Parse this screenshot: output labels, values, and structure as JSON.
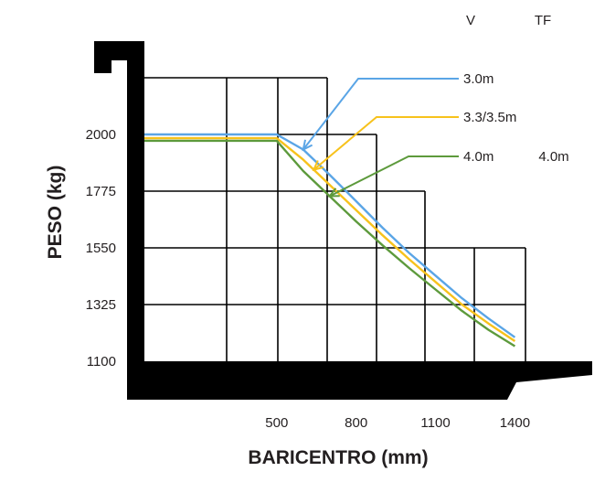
{
  "chart_data": {
    "type": "line",
    "title": "",
    "xlabel": "BARICENTRO (mm)",
    "ylabel": "PESO (kg)",
    "x_ticks": [
      500,
      800,
      1100,
      1400
    ],
    "y_ticks": [
      1100,
      1325,
      1550,
      1775,
      2000
    ],
    "xlim": [
      0,
      1440
    ],
    "ylim": [
      1100,
      2000
    ],
    "grid": true,
    "legend_headers": [
      "V",
      "TF"
    ],
    "series": [
      {
        "name": "3.0m",
        "tf_label": "",
        "color": "#5aa5e6",
        "x": [
          0,
          500,
          600,
          700,
          800,
          900,
          1000,
          1100,
          1200,
          1300,
          1400
        ],
        "y": [
          2000,
          2000,
          1940,
          1840,
          1735,
          1630,
          1530,
          1440,
          1350,
          1270,
          1195
        ]
      },
      {
        "name": "3.3/3.5m",
        "tf_label": "",
        "color": "#f7c21c",
        "x": [
          0,
          500,
          600,
          700,
          800,
          900,
          1000,
          1100,
          1200,
          1300,
          1400
        ],
        "y": [
          1985,
          1985,
          1900,
          1800,
          1700,
          1600,
          1505,
          1415,
          1325,
          1250,
          1180
        ]
      },
      {
        "name": "4.0m",
        "tf_label": "4.0m",
        "color": "#5d9a3c",
        "x": [
          0,
          500,
          600,
          700,
          800,
          900,
          1000,
          1100,
          1200,
          1300,
          1400
        ],
        "y": [
          1975,
          1975,
          1855,
          1755,
          1655,
          1560,
          1470,
          1385,
          1300,
          1225,
          1160
        ]
      }
    ]
  }
}
